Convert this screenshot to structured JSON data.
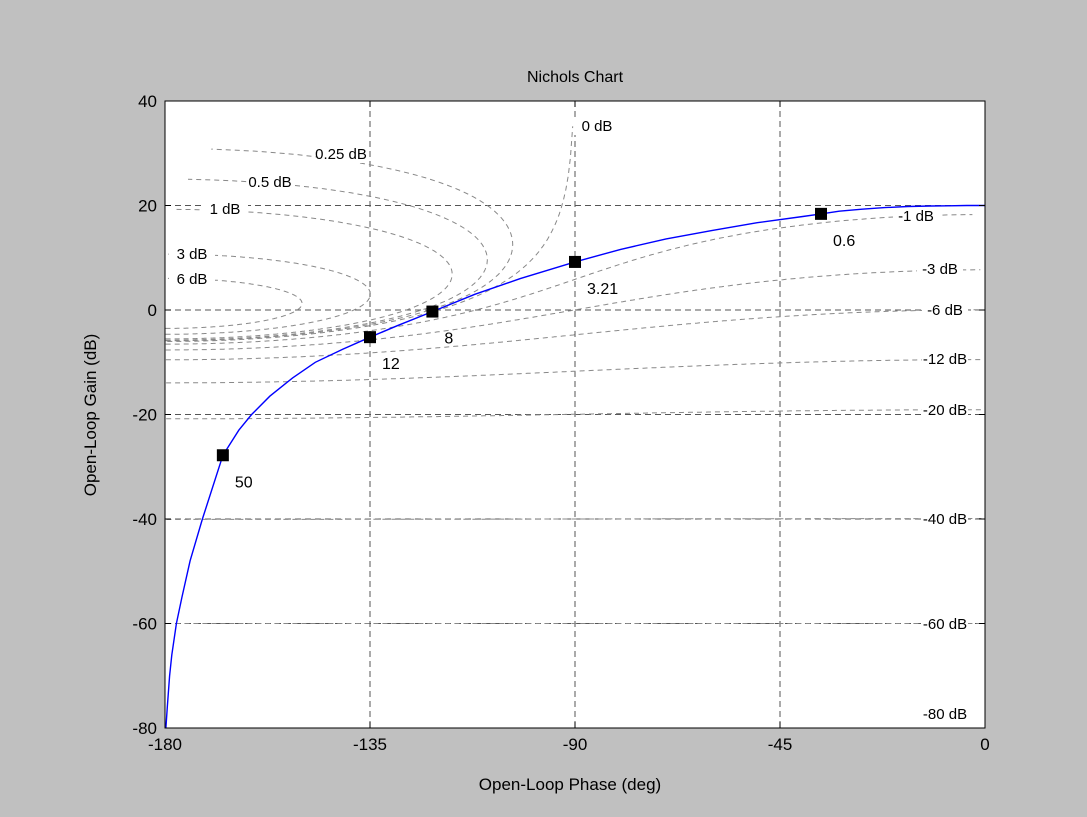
{
  "figure": {
    "background": "#c0c0c0"
  },
  "chart_data": {
    "type": "line",
    "title": "Nichols Chart",
    "xlabel": "Open-Loop Phase (deg)",
    "ylabel": "Open-Loop Gain (dB)",
    "xlim": [
      -180,
      0
    ],
    "ylim": [
      -80,
      40
    ],
    "xticks": [
      -180,
      -135,
      -90,
      -45,
      0
    ],
    "yticks": [
      -80,
      -60,
      -40,
      -20,
      0,
      20,
      40
    ],
    "xtick_labels": [
      "-180",
      "-135",
      "-90",
      "-45",
      "0"
    ],
    "ytick_labels": [
      "-80",
      "-60",
      "-40",
      "-20",
      "0",
      "20",
      "40"
    ],
    "grid": true,
    "series": [
      {
        "color": "#0000ff",
        "x": [
          -179.8,
          -179.5,
          -179.0,
          -178.5,
          -177.5,
          -176.3,
          -174.5,
          -171.8,
          -167.3,
          -163.8,
          -161.0,
          -157.0,
          -152.0,
          -147.0,
          -141.0,
          -135.0,
          -129.0,
          -121.3,
          -112.0,
          -102.0,
          -90.0,
          -80.0,
          -70.0,
          -60.0,
          -50.0,
          -40.0,
          -36.0,
          -32.0,
          -27.0,
          -22.0,
          -17.0,
          -12.0,
          -8.0,
          -4.0,
          0.0
        ],
        "y": [
          -80.0,
          -76.0,
          -70.0,
          -66.0,
          -60.0,
          -55.0,
          -48.0,
          -40.0,
          -27.8,
          -23.0,
          -20.0,
          -16.5,
          -13.0,
          -10.0,
          -7.5,
          -5.2,
          -3.0,
          -0.3,
          3.0,
          6.0,
          9.2,
          11.6,
          13.6,
          15.2,
          16.7,
          17.9,
          18.4,
          18.9,
          19.3,
          19.6,
          19.8,
          19.9,
          19.95,
          20.0,
          20.0
        ]
      }
    ],
    "markers": [
      {
        "phase": -167.3,
        "gain": -27.8,
        "label": "50"
      },
      {
        "phase": -135.0,
        "gain": -5.2,
        "label": "12"
      },
      {
        "phase": -121.3,
        "gain": -0.3,
        "label": "8"
      },
      {
        "phase": -90.0,
        "gain": 9.2,
        "label": "3.21"
      },
      {
        "phase": -36.0,
        "gain": 18.4,
        "label": "0.6"
      }
    ],
    "closed_loop_gain_labels": [
      "0 dB",
      "0.25 dB",
      "0.5 dB",
      "1 dB",
      "3 dB",
      "6 dB",
      "-1 dB",
      "-3 dB",
      "-6 dB",
      "-12 dB",
      "-20 dB",
      "-40 dB",
      "-60 dB",
      "-80 dB"
    ]
  }
}
